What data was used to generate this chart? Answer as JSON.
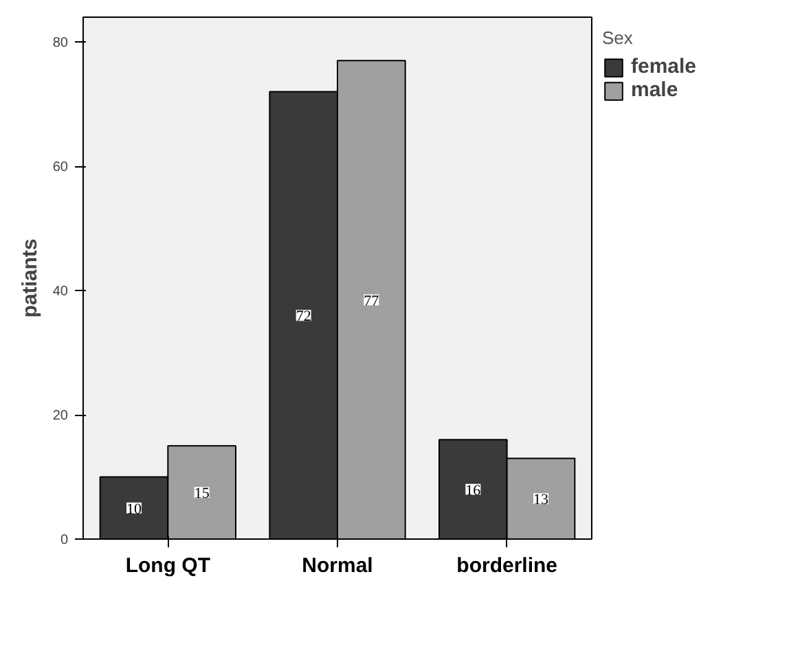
{
  "chart_data": {
    "type": "bar",
    "ylabel": "patiants",
    "legend_title": "Sex",
    "categories": [
      "Long QT",
      "Normal",
      "borderline"
    ],
    "series": [
      {
        "name": "female",
        "color": "#3a3a3a",
        "values": [
          10,
          72,
          16
        ]
      },
      {
        "name": "male",
        "color": "#a0a0a0",
        "values": [
          15,
          77,
          13
        ]
      }
    ],
    "ylim": [
      0,
      84
    ],
    "yticks": [
      0,
      20,
      40,
      60,
      80
    ],
    "grid": false,
    "legend": "right",
    "data_labels": true
  }
}
